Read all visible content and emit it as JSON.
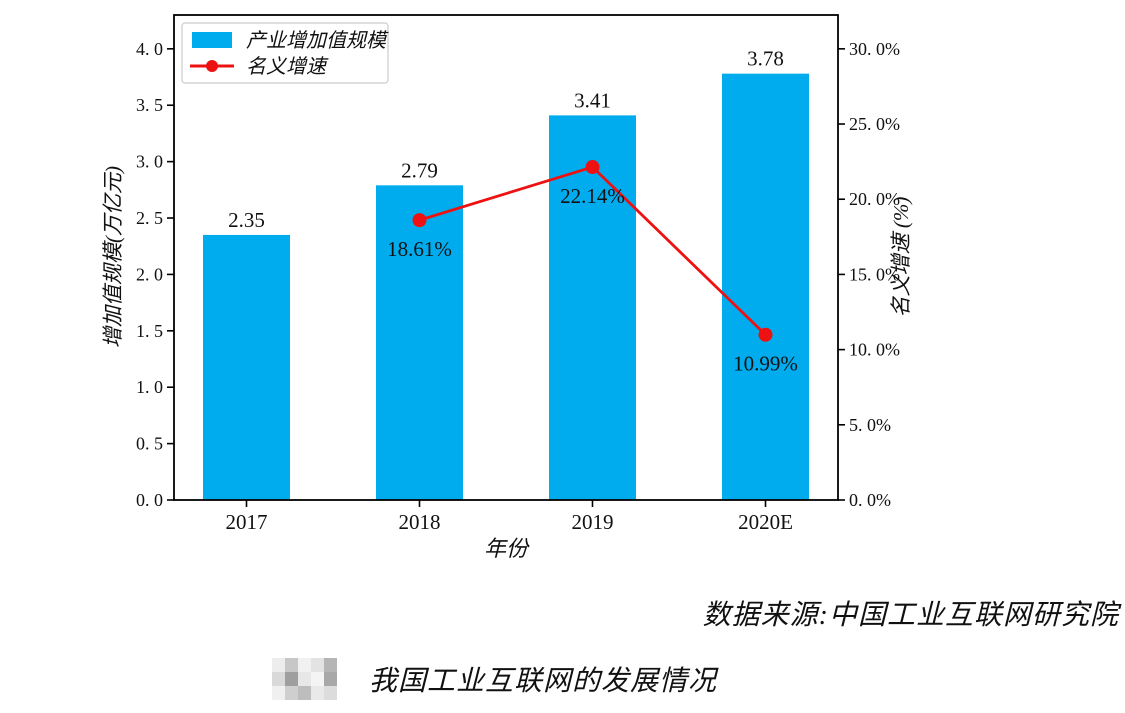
{
  "chart_data": {
    "type": "combo-bar-line",
    "categories": [
      "2017",
      "2018",
      "2019",
      "2020E"
    ],
    "xlabel": "年份",
    "y1_axis": {
      "label": "增加值规模(万亿元)",
      "lim": [
        0,
        4.3
      ],
      "tick_values": [
        0,
        0.5,
        1.0,
        1.5,
        2.0,
        2.5,
        3.0,
        3.5,
        4.0
      ],
      "tick_labels": [
        "0. 0",
        "0. 5",
        "1. 0",
        "1. 5",
        "2. 0",
        "2. 5",
        "3. 0",
        "3. 5",
        "4. 0"
      ]
    },
    "y2_axis": {
      "label": "名义增速 (%)",
      "lim": [
        0,
        32.25
      ],
      "tick_values": [
        0,
        5,
        10,
        15,
        20,
        25,
        30
      ],
      "tick_labels": [
        "0. 0%",
        "5. 0%",
        "10. 0%",
        "15. 0%",
        "20. 0%",
        "25. 0%",
        "30. 0%"
      ]
    },
    "series": [
      {
        "name": "产业增加值规模",
        "type": "bar",
        "axis": "y1",
        "color": "#00acee",
        "values": [
          2.35,
          2.79,
          3.41,
          3.78
        ],
        "value_labels": [
          "2.35",
          "2.79",
          "3.41",
          "3.78"
        ]
      },
      {
        "name": "名义增速",
        "type": "line",
        "axis": "y2",
        "color": "#ee1111",
        "points": [
          {
            "category": "2018",
            "category_index": 1,
            "value": 18.61,
            "label": "18.61%"
          },
          {
            "category": "2019",
            "category_index": 2,
            "value": 22.14,
            "label": "22.14%"
          },
          {
            "category": "2020E",
            "category_index": 3,
            "value": 10.99,
            "label": "10.99%"
          }
        ]
      }
    ],
    "legend": {
      "position": "upper-left",
      "entries": [
        "产业增加值规模",
        "名义增速"
      ]
    },
    "grid": false
  },
  "source_note": "数据来源:中国工业互联网研究院",
  "caption": {
    "text": "我国工业互联网的发展情况"
  },
  "colors": {
    "bar": "#00acee",
    "line": "#ee1111",
    "axis": "#000000",
    "legend_border": "#cccccc"
  }
}
